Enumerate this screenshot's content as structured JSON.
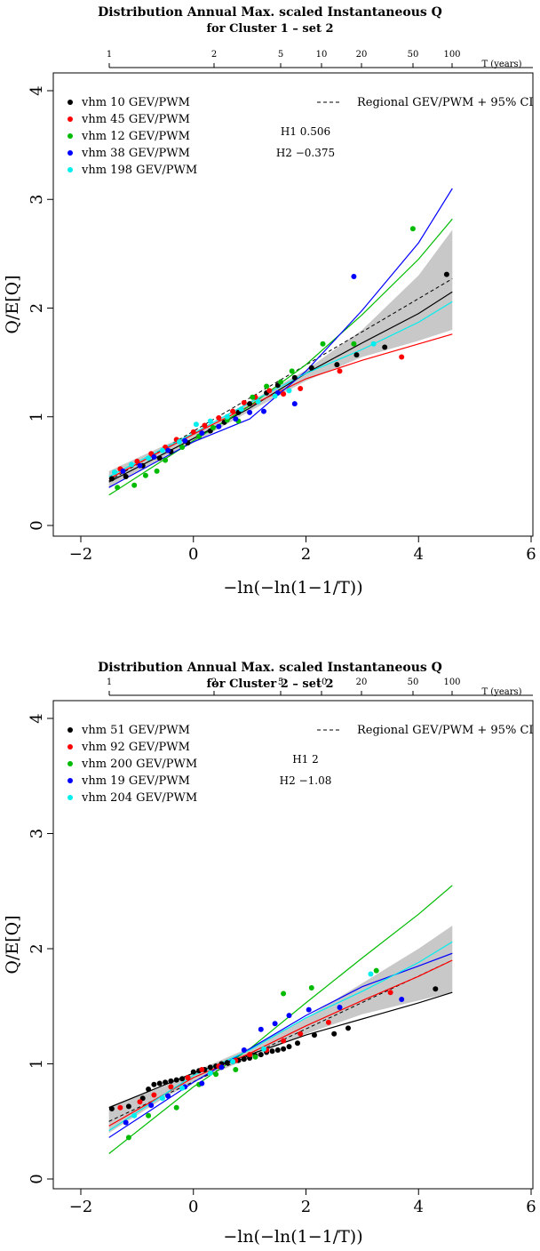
{
  "chart_data": [
    {
      "type": "scatter",
      "title": "Distribution Annual Max. scaled Instantaneous Q",
      "subtitle": "for Cluster 1 – set 2",
      "xlabel": "−ln(−ln(1−1/T))",
      "ylabel": "Q/E[Q]",
      "xlim": [
        -2,
        6
      ],
      "ylim": [
        0,
        4
      ],
      "x_ticks": [
        -2,
        0,
        2,
        4,
        6
      ],
      "x_tick_labels": [
        "−2",
        "0",
        "2",
        "4",
        "6"
      ],
      "y_ticks": [
        0,
        1,
        2,
        3,
        4
      ],
      "y_tick_labels": [
        "0",
        "1",
        "2",
        "3",
        "4"
      ],
      "top_axis_label": "T (years)",
      "top_axis_ticks": [
        "1",
        "2",
        "5",
        "10",
        "20",
        "50",
        "100"
      ],
      "regional_label": "Regional GEV/PWM  + 95% CI",
      "h1": "H1 0.506",
      "h2": "H2 −0.375",
      "regional": {
        "x": [
          -1.5,
          4.6
        ],
        "y": [
          0.41,
          2.27
        ]
      },
      "ci_band": {
        "x": [
          -1.5,
          -0.5,
          0,
          1,
          2,
          3,
          4,
          4.6
        ],
        "lower": [
          0.34,
          0.64,
          0.76,
          1.05,
          1.33,
          1.55,
          1.7,
          1.8
        ],
        "upper": [
          0.5,
          0.74,
          0.85,
          1.14,
          1.43,
          1.8,
          2.3,
          2.72
        ]
      },
      "series": [
        {
          "name": "vhm 10 GEV/PWM",
          "color": "#000000",
          "curve_x": [
            -1.5,
            0,
            1,
            2,
            3,
            4,
            4.6
          ],
          "curve_y": [
            0.4,
            0.8,
            1.08,
            1.4,
            1.68,
            1.95,
            2.15
          ],
          "x": [
            -1.45,
            -1.2,
            -0.9,
            -0.6,
            -0.4,
            -0.1,
            0.1,
            0.3,
            0.55,
            0.8,
            1.0,
            1.3,
            1.5,
            1.8,
            2.1,
            2.55,
            2.9,
            3.4,
            4.5
          ],
          "y": [
            0.43,
            0.45,
            0.55,
            0.62,
            0.68,
            0.76,
            0.82,
            0.87,
            0.95,
            1.04,
            1.12,
            1.22,
            1.29,
            1.36,
            1.45,
            1.48,
            1.57,
            1.64,
            2.31
          ]
        },
        {
          "name": "vhm 45 GEV/PWM",
          "color": "#ff0000",
          "curve_x": [
            -1.5,
            0,
            1,
            2,
            3,
            4,
            4.6
          ],
          "curve_y": [
            0.43,
            0.84,
            1.1,
            1.35,
            1.52,
            1.67,
            1.76
          ],
          "x": [
            -1.3,
            -1.0,
            -0.75,
            -0.5,
            -0.3,
            0.0,
            0.2,
            0.45,
            0.7,
            0.9,
            1.1,
            1.35,
            1.6,
            1.9,
            2.6,
            3.7
          ],
          "y": [
            0.52,
            0.59,
            0.66,
            0.72,
            0.79,
            0.86,
            0.92,
            0.99,
            1.05,
            1.13,
            1.18,
            1.24,
            1.21,
            1.26,
            1.42,
            1.55
          ]
        },
        {
          "name": "vhm 12 GEV/PWM",
          "color": "#00bb00",
          "curve_x": [
            -1.5,
            0,
            1,
            2,
            3,
            4,
            4.6
          ],
          "curve_y": [
            0.28,
            0.78,
            1.1,
            1.48,
            1.94,
            2.45,
            2.82
          ],
          "x": [
            -1.35,
            -1.05,
            -0.85,
            -0.65,
            -0.5,
            -0.2,
            0.1,
            0.35,
            0.6,
            0.8,
            1.05,
            1.3,
            1.55,
            1.75,
            2.3,
            2.85,
            3.9
          ],
          "y": [
            0.35,
            0.37,
            0.46,
            0.5,
            0.6,
            0.72,
            0.82,
            0.9,
            0.97,
            0.96,
            1.18,
            1.28,
            1.32,
            1.42,
            1.67,
            1.67,
            2.73
          ]
        },
        {
          "name": "vhm 38 GEV/PWM",
          "color": "#0000ff",
          "curve_x": [
            -1.5,
            0,
            1,
            2,
            3,
            4,
            4.6
          ],
          "curve_y": [
            0.35,
            0.77,
            0.98,
            1.42,
            1.98,
            2.6,
            3.1
          ],
          "x": [
            -1.25,
            -0.95,
            -0.7,
            -0.45,
            -0.15,
            0.15,
            0.45,
            0.75,
            1.0,
            1.25,
            1.5,
            1.8,
            2.85
          ],
          "y": [
            0.5,
            0.55,
            0.63,
            0.69,
            0.78,
            0.85,
            0.91,
            0.98,
            1.04,
            1.05,
            1.22,
            1.12,
            2.29
          ]
        },
        {
          "name": "vhm 198 GEV/PWM",
          "color": "#00eeee",
          "curve_x": [
            -1.5,
            0,
            1,
            2,
            3,
            4,
            4.6
          ],
          "curve_y": [
            0.45,
            0.85,
            1.13,
            1.4,
            1.62,
            1.87,
            2.06
          ],
          "x": [
            -1.4,
            -1.1,
            -0.8,
            -0.55,
            -0.25,
            0.05,
            0.3,
            0.6,
            0.85,
            1.15,
            1.45,
            1.7,
            3.2
          ],
          "y": [
            0.49,
            0.56,
            0.62,
            0.69,
            0.77,
            0.93,
            0.96,
            1.0,
            1.07,
            1.14,
            1.19,
            1.24,
            1.67
          ]
        }
      ]
    },
    {
      "type": "scatter",
      "title": "Distribution Annual Max. scaled Instantaneous Q",
      "subtitle": "for Cluster 2 – set 2",
      "xlabel": "−ln(−ln(1−1/T))",
      "ylabel": "Q/E[Q]",
      "xlim": [
        -2,
        6
      ],
      "ylim": [
        0,
        4
      ],
      "x_ticks": [
        -2,
        0,
        2,
        4,
        6
      ],
      "x_tick_labels": [
        "−2",
        "0",
        "2",
        "4",
        "6"
      ],
      "y_ticks": [
        0,
        1,
        2,
        3,
        4
      ],
      "y_tick_labels": [
        "0",
        "1",
        "2",
        "3",
        "4"
      ],
      "top_axis_label": "T (years)",
      "top_axis_ticks": [
        "1",
        "2",
        "5",
        "10",
        "20",
        "50",
        "100"
      ],
      "regional_label": "Regional GEV/PWM  + 95% CI",
      "h1": "H1 2",
      "h2": "H2 −1.08",
      "regional": {
        "x": [
          -1.5,
          4.6
        ],
        "y": [
          0.5,
          1.9
        ]
      },
      "ci_band": {
        "x": [
          -1.5,
          -0.5,
          0,
          1,
          2,
          3,
          4,
          4.6
        ],
        "lower": [
          0.4,
          0.71,
          0.84,
          1.05,
          1.26,
          1.43,
          1.55,
          1.62
        ],
        "upper": [
          0.63,
          0.81,
          0.93,
          1.14,
          1.4,
          1.7,
          2.0,
          2.2
        ]
      },
      "series": [
        {
          "name": "vhm 51 GEV/PWM",
          "color": "#000000",
          "curve_x": [
            -1.5,
            0,
            1,
            2,
            3,
            4,
            4.6
          ],
          "curve_y": [
            0.62,
            0.92,
            1.08,
            1.25,
            1.39,
            1.53,
            1.62
          ],
          "x": [
            -1.45,
            -1.15,
            -0.9,
            -0.8,
            -0.7,
            -0.6,
            -0.5,
            -0.4,
            -0.3,
            -0.2,
            -0.1,
            0.0,
            0.1,
            0.2,
            0.3,
            0.4,
            0.5,
            0.6,
            0.7,
            0.8,
            0.9,
            1.0,
            1.1,
            1.2,
            1.3,
            1.4,
            1.5,
            1.6,
            1.7,
            1.85,
            2.15,
            2.5,
            2.75,
            4.3
          ],
          "y": [
            0.61,
            0.63,
            0.7,
            0.78,
            0.82,
            0.83,
            0.84,
            0.85,
            0.86,
            0.87,
            0.88,
            0.93,
            0.94,
            0.95,
            0.97,
            0.98,
            1.0,
            1.01,
            1.02,
            1.03,
            1.04,
            1.05,
            1.07,
            1.08,
            1.1,
            1.11,
            1.12,
            1.13,
            1.15,
            1.18,
            1.25,
            1.26,
            1.31,
            1.65
          ]
        },
        {
          "name": "vhm 92 GEV/PWM",
          "color": "#ff0000",
          "curve_x": [
            -1.5,
            0,
            1,
            2,
            3,
            4,
            4.6
          ],
          "curve_y": [
            0.46,
            0.88,
            1.09,
            1.33,
            1.55,
            1.76,
            1.9
          ],
          "x": [
            -1.3,
            -0.95,
            -0.7,
            -0.4,
            -0.1,
            0.15,
            0.45,
            0.75,
            1.0,
            1.3,
            1.6,
            1.9,
            2.4,
            3.5
          ],
          "y": [
            0.62,
            0.67,
            0.73,
            0.8,
            0.88,
            0.95,
            0.98,
            1.03,
            1.08,
            1.12,
            1.2,
            1.26,
            1.36,
            1.62
          ]
        },
        {
          "name": "vhm 200 GEV/PWM",
          "color": "#00bb00",
          "curve_x": [
            -1.5,
            0,
            1,
            2,
            3,
            4,
            4.6
          ],
          "curve_y": [
            0.22,
            0.8,
            1.13,
            1.53,
            1.92,
            2.3,
            2.55
          ],
          "x": [
            -1.15,
            -0.8,
            -0.3,
            0.1,
            0.4,
            0.75,
            1.1,
            1.6,
            2.1,
            3.25
          ],
          "y": [
            0.36,
            0.55,
            0.62,
            0.82,
            0.91,
            0.95,
            1.06,
            1.61,
            1.66,
            1.81
          ]
        },
        {
          "name": "vhm 19 GEV/PWM",
          "color": "#0000ff",
          "curve_x": [
            -1.5,
            0,
            1,
            2,
            3,
            4,
            4.6
          ],
          "curve_y": [
            0.36,
            0.84,
            1.13,
            1.42,
            1.67,
            1.85,
            1.96
          ],
          "x": [
            -1.2,
            -0.75,
            -0.45,
            -0.15,
            0.15,
            0.5,
            0.9,
            1.2,
            1.45,
            1.7,
            2.05,
            2.6,
            3.7
          ],
          "y": [
            0.49,
            0.64,
            0.72,
            0.8,
            0.83,
            0.97,
            1.12,
            1.3,
            1.35,
            1.42,
            1.47,
            1.49,
            1.56
          ]
        },
        {
          "name": "vhm 204 GEV/PWM",
          "color": "#00eeee",
          "curve_x": [
            -1.5,
            0,
            1,
            2,
            3,
            4,
            4.6
          ],
          "curve_y": [
            0.42,
            0.9,
            1.12,
            1.4,
            1.63,
            1.88,
            2.06
          ],
          "x": [
            -1.05,
            -0.55,
            -0.2,
            0.3,
            0.7,
            1.25,
            3.15
          ],
          "y": [
            0.55,
            0.7,
            0.79,
            0.92,
            1.02,
            1.13,
            1.78
          ]
        }
      ]
    }
  ]
}
